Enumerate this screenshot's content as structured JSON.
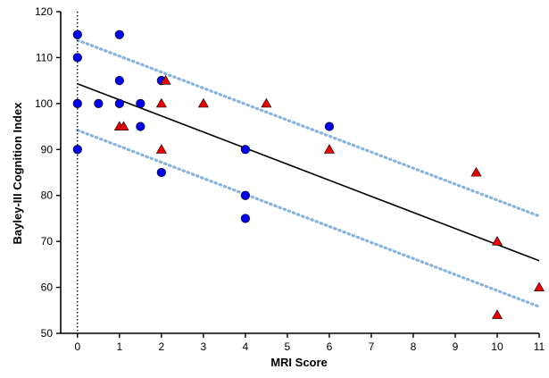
{
  "chart_data": {
    "type": "scatter",
    "xlabel": "MRI Score",
    "ylabel": "Bayley-III Cognition  Index",
    "xlim": [
      -0.4,
      11
    ],
    "ylim": [
      50,
      120
    ],
    "x_ticks": [
      0,
      1,
      2,
      3,
      4,
      5,
      6,
      7,
      8,
      9,
      10,
      11
    ],
    "y_ticks": [
      50,
      60,
      70,
      80,
      90,
      100,
      110,
      120
    ],
    "grid": false,
    "legend": "none",
    "series": [
      {
        "marker": "circle",
        "color": "#0000ee",
        "points": [
          [
            0,
            115
          ],
          [
            0,
            110
          ],
          [
            0,
            100
          ],
          [
            0,
            90
          ],
          [
            0.5,
            100
          ],
          [
            1,
            115
          ],
          [
            1,
            105
          ],
          [
            1,
            100
          ],
          [
            1.5,
            100
          ],
          [
            1.5,
            95
          ],
          [
            2,
            105
          ],
          [
            2,
            85
          ],
          [
            4,
            90
          ],
          [
            4,
            80
          ],
          [
            4,
            75
          ],
          [
            6,
            95
          ]
        ]
      },
      {
        "marker": "triangle",
        "color": "#ee0000",
        "points": [
          [
            1,
            95
          ],
          [
            1.1,
            95
          ],
          [
            2,
            100
          ],
          [
            2,
            90
          ],
          [
            2.1,
            105
          ],
          [
            3,
            100
          ],
          [
            4.5,
            100
          ],
          [
            6,
            90
          ],
          [
            9.5,
            85
          ],
          [
            10,
            70
          ],
          [
            10,
            54
          ],
          [
            11,
            60
          ]
        ]
      }
    ],
    "fit_line": {
      "x": [
        0,
        11
      ],
      "y": [
        104.3,
        65.8
      ],
      "color": "#000000"
    },
    "bands": [
      {
        "x": [
          0,
          11
        ],
        "y": [
          113.8,
          75.5
        ],
        "color": "#86b4de",
        "style": "dotted"
      },
      {
        "x": [
          0,
          11
        ],
        "y": [
          94.2,
          55.8
        ],
        "color": "#86b4de",
        "style": "dotted"
      }
    ],
    "reference_line": {
      "x": 0,
      "style": "dotted",
      "color": "#000000"
    }
  }
}
